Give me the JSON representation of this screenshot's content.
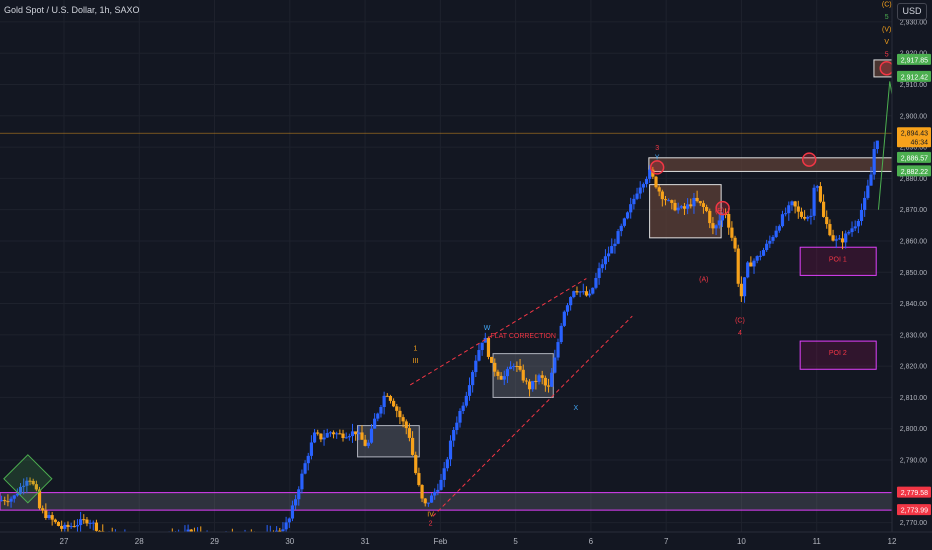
{
  "header": {
    "title": "Gold Spot / U.S. Dollar, 1h, SAXO",
    "currency": "USD"
  },
  "colors": {
    "background": "#131722",
    "bull_candle": "#2962ff",
    "bear_candle": "#f7a21b",
    "grid": "#1e222d",
    "zone_fill": "#5d4037",
    "zone_border": "#f0f0f0",
    "label_green": "#4caf50",
    "label_red": "#f23645",
    "label_price": "#f7a21b"
  },
  "chart_data": {
    "type": "candlestick",
    "title": "Gold Spot / U.S. Dollar, 1h, SAXO",
    "ylim": [
      2767,
      2937
    ],
    "y_ticks": [
      "2,930.00",
      "2,920.00",
      "2,910.00",
      "2,900.00",
      "2,890.00",
      "2,880.00",
      "2,870.00",
      "2,860.00",
      "2,850.00",
      "2,840.00",
      "2,830.00",
      "2,820.00",
      "2,810.00",
      "2,800.00",
      "2,790.00",
      "2,770.00"
    ],
    "y_tick_values": [
      2930,
      2920,
      2910,
      2900,
      2890,
      2880,
      2870,
      2860,
      2850,
      2840,
      2830,
      2820,
      2810,
      2800,
      2790,
      2770
    ],
    "x_ticks": [
      "27",
      "28",
      "29",
      "30",
      "31",
      "Feb",
      "5",
      "6",
      "7",
      "10",
      "11",
      "12"
    ],
    "x_tick_values": [
      0.5,
      1.5,
      2.5,
      3.5,
      4.5,
      5.5,
      6.5,
      7.5,
      8.5,
      9.5,
      10.5,
      11.5
    ],
    "x_range": [
      -0.35,
      11.5
    ],
    "price_labels": [
      {
        "text": "2,917.85",
        "value": 2917.85,
        "kind": "green"
      },
      {
        "text": "2,912.42",
        "value": 2912.42,
        "kind": "green"
      },
      {
        "text": "2,894.43",
        "sub": "46:34",
        "value": 2894.43,
        "kind": "price"
      },
      {
        "text": "2,886.57",
        "value": 2886.57,
        "kind": "green"
      },
      {
        "text": "2,882.22",
        "value": 2882.22,
        "kind": "green"
      },
      {
        "text": "2,779.58",
        "value": 2779.58,
        "kind": "red"
      },
      {
        "text": "2,773.99",
        "value": 2773.99,
        "kind": "red"
      }
    ],
    "current_price": 2894.43,
    "path": [
      [
        -0.35,
        2777
      ],
      [
        -0.15,
        2778
      ],
      [
        0.05,
        2785
      ],
      [
        0.15,
        2780
      ],
      [
        0.2,
        2774
      ],
      [
        0.3,
        2772
      ],
      [
        0.5,
        2768
      ],
      [
        0.85,
        2771
      ],
      [
        1.05,
        2766
      ],
      [
        1.3,
        2765
      ],
      [
        1.7,
        2765
      ],
      [
        2.0,
        2765
      ],
      [
        2.2,
        2767
      ],
      [
        2.5,
        2764
      ],
      [
        2.9,
        2766
      ],
      [
        3.3,
        2766
      ],
      [
        3.5,
        2770
      ],
      [
        3.6,
        2778
      ],
      [
        3.75,
        2791
      ],
      [
        3.85,
        2798
      ],
      [
        3.95,
        2797
      ],
      [
        4.05,
        2799
      ],
      [
        4.2,
        2798
      ],
      [
        4.4,
        2799
      ],
      [
        4.55,
        2794
      ],
      [
        4.65,
        2803
      ],
      [
        4.8,
        2812
      ],
      [
        4.9,
        2808
      ],
      [
        5.0,
        2803
      ],
      [
        5.1,
        2799
      ],
      [
        5.2,
        2785
      ],
      [
        5.3,
        2775
      ],
      [
        5.4,
        2778
      ],
      [
        5.55,
        2784
      ],
      [
        5.7,
        2800
      ],
      [
        5.85,
        2810
      ],
      [
        6.0,
        2823
      ],
      [
        6.1,
        2830
      ],
      [
        6.2,
        2820
      ],
      [
        6.35,
        2816
      ],
      [
        6.5,
        2821
      ],
      [
        6.7,
        2813
      ],
      [
        6.85,
        2817
      ],
      [
        6.95,
        2812
      ],
      [
        7.05,
        2823
      ],
      [
        7.15,
        2837
      ],
      [
        7.3,
        2845
      ],
      [
        7.5,
        2842
      ],
      [
        7.65,
        2852
      ],
      [
        7.8,
        2858
      ],
      [
        8.0,
        2868
      ],
      [
        8.15,
        2877
      ],
      [
        8.3,
        2882
      ],
      [
        8.45,
        2875
      ],
      [
        8.6,
        2871
      ],
      [
        8.75,
        2870
      ],
      [
        8.9,
        2873
      ],
      [
        9.05,
        2870
      ],
      [
        9.15,
        2863
      ],
      [
        9.3,
        2870
      ],
      [
        9.45,
        2856
      ],
      [
        9.5,
        2840
      ],
      [
        9.6,
        2852
      ],
      [
        9.75,
        2855
      ],
      [
        9.9,
        2860
      ],
      [
        10.05,
        2867
      ],
      [
        10.2,
        2872
      ],
      [
        10.3,
        2868
      ],
      [
        10.45,
        2868
      ],
      [
        10.5,
        2882
      ],
      [
        10.6,
        2868
      ],
      [
        10.75,
        2860
      ],
      [
        10.85,
        2860
      ],
      [
        10.95,
        2863
      ],
      [
        11.05,
        2866
      ],
      [
        11.15,
        2872
      ],
      [
        11.25,
        2882
      ],
      [
        11.3,
        2893
      ]
    ],
    "zones": [
      {
        "x": [
          11.26,
          11.5
        ],
        "y": [
          2912.42,
          2917.85
        ],
        "style": "brown"
      },
      {
        "x": [
          8.27,
          11.5
        ],
        "y": [
          2882.22,
          2886.57
        ],
        "style": "brown"
      },
      {
        "x": [
          8.28,
          9.23
        ],
        "y": [
          2861,
          2878
        ],
        "style": "brown"
      },
      {
        "x": [
          6.2,
          7.0
        ],
        "y": [
          2810,
          2824
        ],
        "style": "grey"
      },
      {
        "x": [
          4.4,
          5.22
        ],
        "y": [
          2791,
          2801
        ],
        "style": "grey"
      },
      {
        "x": [
          -0.35,
          11.5
        ],
        "y": [
          2773.99,
          2779.58
        ],
        "style": "purple"
      },
      {
        "x": [
          10.28,
          11.29
        ],
        "y": [
          2849,
          2858
        ],
        "style": "poi",
        "label": "POI 1"
      },
      {
        "x": [
          10.28,
          11.29
        ],
        "y": [
          2819,
          2828
        ],
        "style": "poi",
        "label": "POI 2"
      }
    ],
    "annotations": [
      {
        "text": "FLAT CORRECTION",
        "x": 6.6,
        "y": 2829,
        "color": "#f23645"
      },
      {
        "text": "1",
        "x": 5.17,
        "y": 2825,
        "color": "#f7a21b"
      },
      {
        "text": "III",
        "x": 5.17,
        "y": 2821,
        "color": "#f7a21b"
      },
      {
        "text": "W",
        "x": 6.12,
        "y": 2831.5,
        "color": "#42a5f5"
      },
      {
        "text": "X",
        "x": 7.3,
        "y": 2806,
        "color": "#42a5f5"
      },
      {
        "text": "IV",
        "x": 5.37,
        "y": 2772,
        "color": "#f7a21b"
      },
      {
        "text": "2",
        "x": 5.37,
        "y": 2769,
        "color": "#f23645"
      },
      {
        "text": "3",
        "x": 8.38,
        "y": 2889,
        "color": "#f23645"
      },
      {
        "text": "Y",
        "x": 8.38,
        "y": 2886,
        "color": "#42a5f5"
      },
      {
        "text": "(B)",
        "x": 9.21,
        "y": 2869,
        "color": "#f23645"
      },
      {
        "text": "(A)",
        "x": 9.0,
        "y": 2847,
        "color": "#f23645"
      },
      {
        "text": "(C)",
        "x": 9.48,
        "y": 2834,
        "color": "#f23645"
      },
      {
        "text": "4",
        "x": 9.48,
        "y": 2830,
        "color": "#f23645"
      },
      {
        "text": "(C)",
        "x": 11.43,
        "y": 2935,
        "color": "#f7a21b"
      },
      {
        "text": "5",
        "x": 11.43,
        "y": 2931,
        "color": "#4caf50"
      },
      {
        "text": "(V)",
        "x": 11.43,
        "y": 2927,
        "color": "#f7a21b"
      },
      {
        "text": "V",
        "x": 11.43,
        "y": 2923,
        "color": "#f7a21b"
      },
      {
        "text": "5",
        "x": 11.43,
        "y": 2919,
        "color": "#f23645"
      },
      {
        "text": "POI 1",
        "x": 10.78,
        "y": 2853.5,
        "color": "#f23645"
      },
      {
        "text": "POI 2",
        "x": 10.78,
        "y": 2823.5,
        "color": "#f23645"
      }
    ],
    "circles": [
      {
        "x": 11.43,
        "y": 2915.2
      },
      {
        "x": 8.38,
        "y": 2883.5
      },
      {
        "x": 9.25,
        "y": 2870.5
      },
      {
        "x": 10.4,
        "y": 2886
      }
    ],
    "projection": [
      [
        11.32,
        2870
      ],
      [
        11.47,
        2911
      ],
      [
        11.72,
        2876
      ]
    ],
    "channel_lines": [
      [
        [
          5.1,
          2814
        ],
        [
          7.44,
          2848
        ]
      ],
      [
        [
          5.4,
          2772
        ],
        [
          8.05,
          2836
        ]
      ]
    ]
  }
}
